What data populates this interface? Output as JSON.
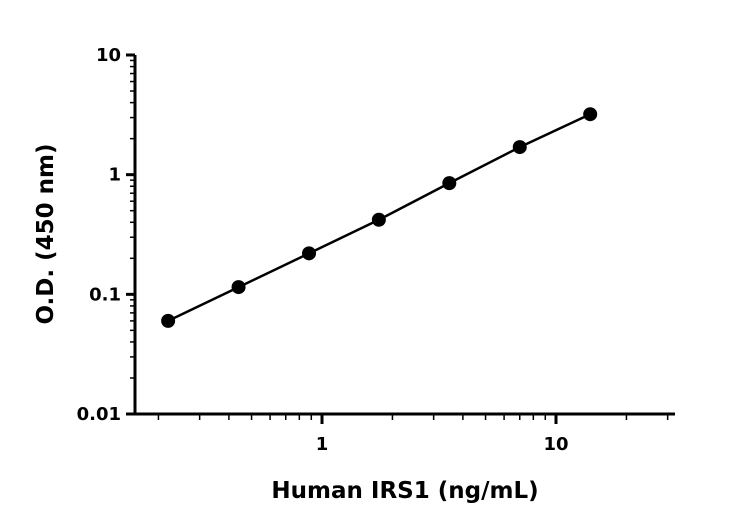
{
  "chart_data": {
    "type": "scatter",
    "title": "",
    "xlabel": "Human IRS1 (ng/mL)",
    "ylabel": "O.D. (450 nm)",
    "x_scale": "log",
    "y_scale": "log",
    "xlim": [
      0.15,
      30
    ],
    "ylim": [
      0.01,
      10
    ],
    "x_ticks": [
      1,
      10
    ],
    "x_tick_labels": [
      "1",
      "10"
    ],
    "y_ticks": [
      0.01,
      0.1,
      1,
      10
    ],
    "y_tick_labels": [
      "0.01",
      "0.1",
      "1",
      "10"
    ],
    "grid": false,
    "legend": "none",
    "fit_line": true,
    "series": [
      {
        "x": [
          0.22,
          0.44,
          0.88,
          1.75,
          3.5,
          7,
          14
        ],
        "y": [
          0.06,
          0.115,
          0.22,
          0.42,
          0.85,
          1.7,
          3.2
        ]
      }
    ],
    "colors": {
      "marker": "#000000",
      "line": "#000000",
      "axis": "#000000"
    }
  }
}
